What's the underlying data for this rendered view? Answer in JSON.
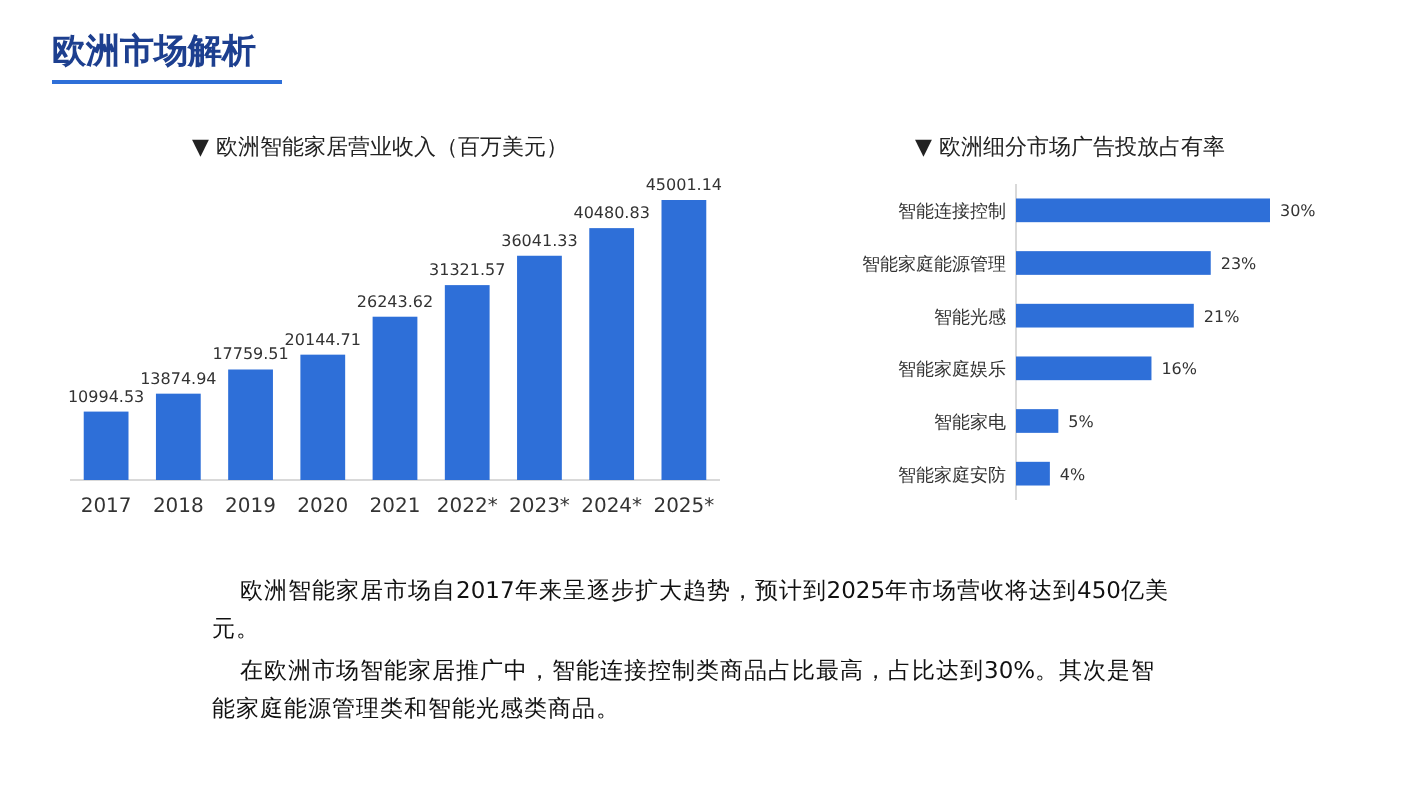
{
  "chart_data": [
    {
      "type": "bar",
      "title": "▼ 欧洲智能家居营业收入（百万美元）",
      "categories": [
        "2017",
        "2018",
        "2019",
        "2020",
        "2021",
        "2022*",
        "2023*",
        "2024*",
        "2025*"
      ],
      "values": [
        10994.53,
        13874.94,
        17759.51,
        20144.71,
        26243.62,
        31321.57,
        36041.33,
        40480.83,
        45001.14
      ],
      "color": "#2e6fd8",
      "data_labels": true
    },
    {
      "type": "bar",
      "orientation": "horizontal",
      "title": "▼ 欧洲细分市场广告投放占有率",
      "categories": [
        "智能连接控制",
        "智能家庭能源管理",
        "智能光感",
        "智能家庭娱乐",
        "智能家电",
        "智能家庭安防"
      ],
      "values": [
        30,
        23,
        21,
        16,
        5,
        4
      ],
      "value_labels": [
        "30%",
        "23%",
        "21%",
        "16%",
        "5%",
        "4%"
      ],
      "color": "#2e6fd8"
    },
    {
      "type": "other",
      "title": "欧洲市场解析",
      "annotations": [
        "欧洲智能家居市场自2017年来呈逐步扩大趋势，预计到2025年市场营收将达到450亿美元。",
        "在欧洲市场智能家居推广中，智能连接控制类商品占比最高，占比达到30%。其次是智能家庭能源管理类和智能光感类商品。"
      ]
    }
  ]
}
